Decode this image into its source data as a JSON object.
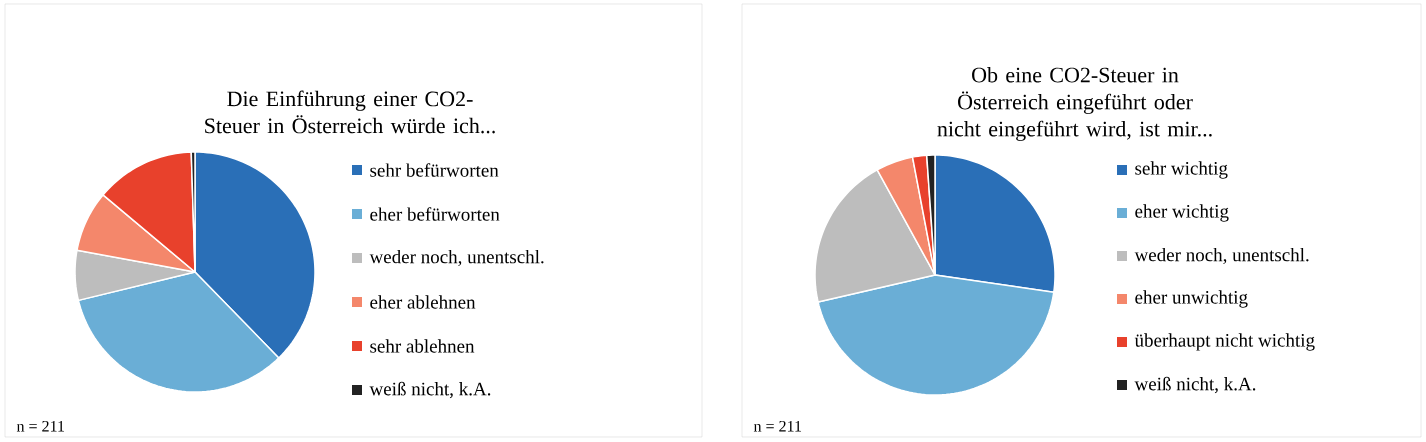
{
  "chart_data": [
    {
      "type": "pie",
      "title": "Die Einführung einer CO2-Steuer in Österreich würde ich...",
      "categories": [
        "sehr befürworten",
        "eher befürworten",
        "weder noch, unentschl.",
        "eher ablehnen",
        "sehr ablehnen",
        "weiß nicht, k.A."
      ],
      "values": [
        37.7,
        33.5,
        6.7,
        8.2,
        13.4,
        0.5
      ],
      "colors": [
        "#2a6fb7",
        "#6aaed6",
        "#bdbdbd",
        "#f4876b",
        "#e8412c",
        "#222222"
      ],
      "legend": "right",
      "annotations": [
        "n = 211"
      ]
    },
    {
      "type": "pie",
      "title": "Ob eine CO2-Steuer in Österreich eingeführt oder nicht eingeführt wird, ist mir...",
      "categories": [
        "sehr wichtig",
        "eher wichtig",
        "weder noch, unentschl.",
        "eher unwichtig",
        "überhaupt nicht wichtig",
        "weiß nicht, k.A."
      ],
      "values": [
        27.3,
        44.1,
        20.6,
        5.0,
        1.9,
        1.1
      ],
      "colors": [
        "#2a6fb7",
        "#6aaed6",
        "#bdbdbd",
        "#f4876b",
        "#e8412c",
        "#222222"
      ],
      "legend": "right",
      "annotations": [
        "n = 211"
      ]
    }
  ]
}
